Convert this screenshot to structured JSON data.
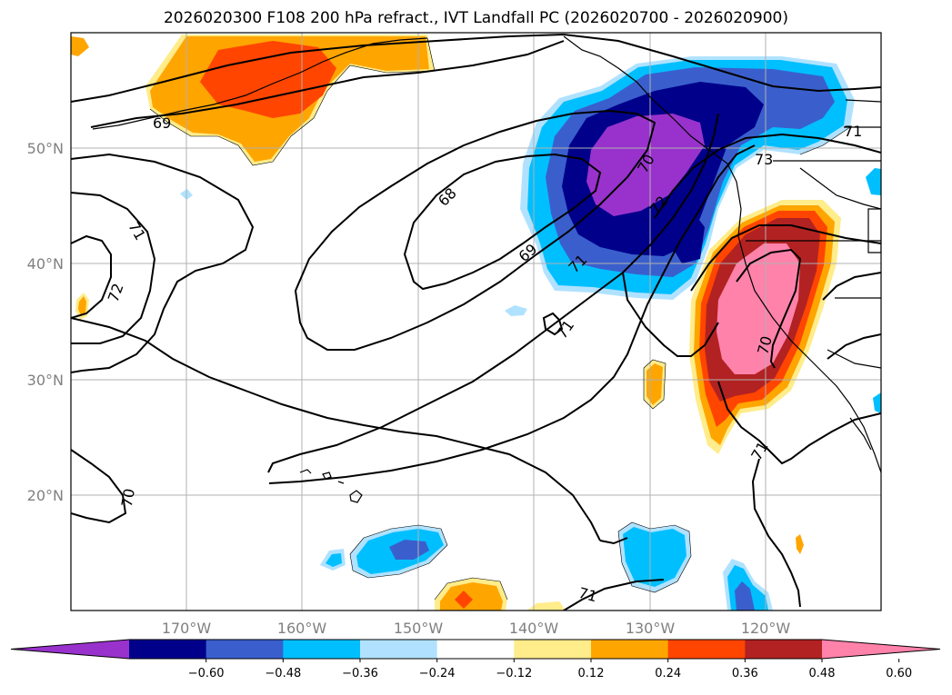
{
  "title": "2026020300 F108 200 hPa refract., IVT Landfall PC (2026020700 - 2026020900)",
  "lon_ticks": [
    "170°W",
    "160°W",
    "150°W",
    "140°W",
    "130°W",
    "120°W"
  ],
  "lat_ticks": [
    "50°N",
    "40°N",
    "30°N",
    "20°N"
  ],
  "colorbar": {
    "colors": [
      "#9932CC",
      "#00008B",
      "#3A5FCD",
      "#00BFFF",
      "#B0E2FF",
      "#FFFFFF",
      "#FFEC8B",
      "#FFA500",
      "#FF4500",
      "#B22222",
      "#FF82AB"
    ],
    "tick_labels": [
      "−0.60",
      "−0.48",
      "−0.36",
      "−0.24",
      "−0.12",
      "0.12",
      "0.24",
      "0.36",
      "0.48",
      "0.60"
    ]
  },
  "contour_labels": [
    "69",
    "68",
    "69",
    "70",
    "71",
    "72",
    "73",
    "71",
    "72",
    "71",
    "70",
    "70",
    "71",
    "71",
    "71"
  ]
}
